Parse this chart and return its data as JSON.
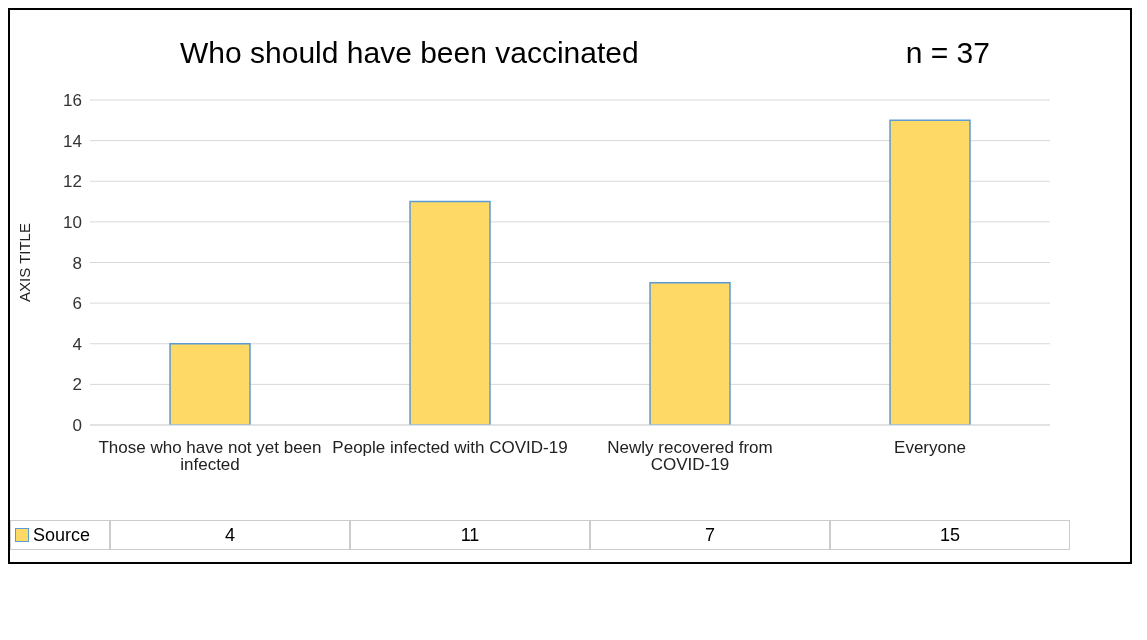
{
  "chart_data": {
    "type": "bar",
    "title": "Who should have been vaccinated",
    "annotations": [
      "n = 37"
    ],
    "ylabel": "AXIS TITLE",
    "categories": [
      "Those who have not yet been infected",
      "People infected with COVID-19",
      "Newly recovered from COVID-19",
      "Everyone"
    ],
    "series": [
      {
        "name": "Source",
        "color": "#ffd966",
        "values": [
          4,
          11,
          7,
          15
        ]
      }
    ],
    "ylim": [
      0,
      16
    ],
    "yticks": [
      0,
      2,
      4,
      6,
      8,
      10,
      12,
      14,
      16
    ],
    "grid": "y",
    "legend": "bottom",
    "data_labels": true
  }
}
